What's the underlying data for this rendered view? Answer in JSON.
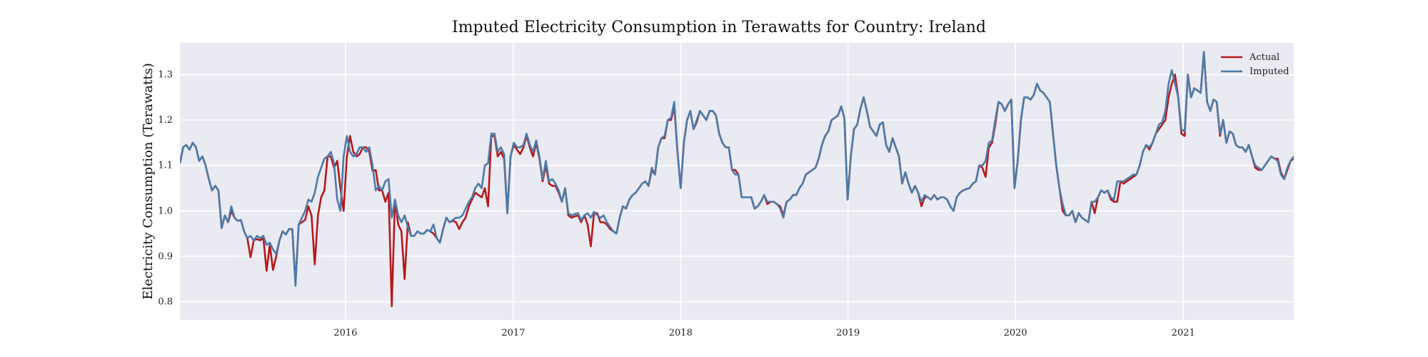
{
  "chart_data": {
    "type": "line",
    "title": "Imputed Electricity Consumption in Terawatts for Country: Ireland",
    "xlabel": "",
    "ylabel": "Electricity Consumption (Terawatts)",
    "xlim": [
      "2015-01-05",
      "2021-08-30"
    ],
    "ylim": [
      0.76,
      1.37
    ],
    "x_ticks": [
      {
        "date": "2016-01-01",
        "label": "2016"
      },
      {
        "date": "2017-01-01",
        "label": "2017"
      },
      {
        "date": "2018-01-01",
        "label": "2018"
      },
      {
        "date": "2019-01-01",
        "label": "2019"
      },
      {
        "date": "2020-01-01",
        "label": "2020"
      },
      {
        "date": "2021-01-01",
        "label": "2021"
      }
    ],
    "y_ticks": [
      0.8,
      0.9,
      1.0,
      1.1,
      1.2,
      1.3
    ],
    "grid": true,
    "legend_position": "top-right",
    "x": [
      "2015-01-05",
      "2015-01-12",
      "2015-01-19",
      "2015-01-26",
      "2015-02-02",
      "2015-02-09",
      "2015-02-16",
      "2015-02-23",
      "2015-03-02",
      "2015-03-09",
      "2015-03-16",
      "2015-03-23",
      "2015-03-30",
      "2015-04-06",
      "2015-04-13",
      "2015-04-20",
      "2015-04-27",
      "2015-05-04",
      "2015-05-11",
      "2015-05-18",
      "2015-05-25",
      "2015-06-01",
      "2015-06-08",
      "2015-06-15",
      "2015-06-22",
      "2015-06-29",
      "2015-07-06",
      "2015-07-13",
      "2015-07-20",
      "2015-07-27",
      "2015-08-03",
      "2015-08-10",
      "2015-08-17",
      "2015-08-24",
      "2015-08-31",
      "2015-09-07",
      "2015-09-14",
      "2015-09-21",
      "2015-09-28",
      "2015-10-05",
      "2015-10-12",
      "2015-10-19",
      "2015-10-26",
      "2015-11-02",
      "2015-11-09",
      "2015-11-16",
      "2015-11-23",
      "2015-11-30",
      "2015-12-07",
      "2015-12-14",
      "2015-12-21",
      "2015-12-28",
      "2016-01-04",
      "2016-01-11",
      "2016-01-18",
      "2016-01-25",
      "2016-02-01",
      "2016-02-08",
      "2016-02-15",
      "2016-02-22",
      "2016-02-29",
      "2016-03-07",
      "2016-03-14",
      "2016-03-21",
      "2016-03-28",
      "2016-04-04",
      "2016-04-11",
      "2016-04-18",
      "2016-04-25",
      "2016-05-02",
      "2016-05-09",
      "2016-05-16",
      "2016-05-23",
      "2016-05-30",
      "2016-06-06",
      "2016-06-13",
      "2016-06-20",
      "2016-06-27",
      "2016-07-04",
      "2016-07-11",
      "2016-07-18",
      "2016-07-25",
      "2016-08-01",
      "2016-08-08",
      "2016-08-15",
      "2016-08-22",
      "2016-08-29",
      "2016-09-05",
      "2016-09-12",
      "2016-09-19",
      "2016-09-26",
      "2016-10-03",
      "2016-10-10",
      "2016-10-17",
      "2016-10-24",
      "2016-10-31",
      "2016-11-07",
      "2016-11-14",
      "2016-11-21",
      "2016-11-28",
      "2016-12-05",
      "2016-12-12",
      "2016-12-19",
      "2016-12-26",
      "2017-01-02",
      "2017-01-09",
      "2017-01-16",
      "2017-01-23",
      "2017-01-30",
      "2017-02-06",
      "2017-02-13",
      "2017-02-20",
      "2017-02-27",
      "2017-03-06",
      "2017-03-13",
      "2017-03-20",
      "2017-03-27",
      "2017-04-03",
      "2017-04-10",
      "2017-04-17",
      "2017-04-24",
      "2017-05-01",
      "2017-05-08",
      "2017-05-15",
      "2017-05-22",
      "2017-05-29",
      "2017-06-05",
      "2017-06-12",
      "2017-06-19",
      "2017-06-26",
      "2017-07-03",
      "2017-07-10",
      "2017-07-17",
      "2017-07-24",
      "2017-07-31",
      "2017-08-07",
      "2017-08-14",
      "2017-08-21",
      "2017-08-28",
      "2017-09-04",
      "2017-09-11",
      "2017-09-18",
      "2017-09-25",
      "2017-10-02",
      "2017-10-09",
      "2017-10-16",
      "2017-10-23",
      "2017-10-30",
      "2017-11-06",
      "2017-11-13",
      "2017-11-20",
      "2017-11-27",
      "2017-12-04",
      "2017-12-11",
      "2017-12-18",
      "2017-12-25",
      "2018-01-01",
      "2018-01-08",
      "2018-01-15",
      "2018-01-22",
      "2018-01-29",
      "2018-02-05",
      "2018-02-12",
      "2018-02-19",
      "2018-02-26",
      "2018-03-05",
      "2018-03-12",
      "2018-03-19",
      "2018-03-26",
      "2018-04-02",
      "2018-04-09",
      "2018-04-16",
      "2018-04-23",
      "2018-04-30",
      "2018-05-07",
      "2018-05-14",
      "2018-05-21",
      "2018-05-28",
      "2018-06-04",
      "2018-06-11",
      "2018-06-18",
      "2018-06-25",
      "2018-07-02",
      "2018-07-09",
      "2018-07-16",
      "2018-07-23",
      "2018-07-30",
      "2018-08-06",
      "2018-08-13",
      "2018-08-20",
      "2018-08-27",
      "2018-09-03",
      "2018-09-10",
      "2018-09-17",
      "2018-09-24",
      "2018-10-01",
      "2018-10-08",
      "2018-10-15",
      "2018-10-22",
      "2018-10-29",
      "2018-11-05",
      "2018-11-12",
      "2018-11-19",
      "2018-11-26",
      "2018-12-03",
      "2018-12-10",
      "2018-12-17",
      "2018-12-24",
      "2018-12-31",
      "2019-01-07",
      "2019-01-14",
      "2019-01-21",
      "2019-01-28",
      "2019-02-04",
      "2019-02-11",
      "2019-02-18",
      "2019-02-25",
      "2019-03-04",
      "2019-03-11",
      "2019-03-18",
      "2019-03-25",
      "2019-04-01",
      "2019-04-08",
      "2019-04-15",
      "2019-04-22",
      "2019-04-29",
      "2019-05-06",
      "2019-05-13",
      "2019-05-20",
      "2019-05-27",
      "2019-06-03",
      "2019-06-10",
      "2019-06-17",
      "2019-06-24",
      "2019-07-01",
      "2019-07-08",
      "2019-07-15",
      "2019-07-22",
      "2019-07-29",
      "2019-08-05",
      "2019-08-12",
      "2019-08-19",
      "2019-08-26",
      "2019-09-02",
      "2019-09-09",
      "2019-09-16",
      "2019-09-23",
      "2019-09-30",
      "2019-10-07",
      "2019-10-14",
      "2019-10-21",
      "2019-10-28",
      "2019-11-04",
      "2019-11-11",
      "2019-11-18",
      "2019-11-25",
      "2019-12-02",
      "2019-12-09",
      "2019-12-16",
      "2019-12-23",
      "2019-12-30",
      "2020-01-06",
      "2020-01-13",
      "2020-01-20",
      "2020-01-27",
      "2020-02-03",
      "2020-02-10",
      "2020-02-17",
      "2020-02-24",
      "2020-03-02",
      "2020-03-09",
      "2020-03-16",
      "2020-03-23",
      "2020-03-30",
      "2020-04-06",
      "2020-04-13",
      "2020-04-20",
      "2020-04-27",
      "2020-05-04",
      "2020-05-11",
      "2020-05-18",
      "2020-05-25",
      "2020-06-01",
      "2020-06-08",
      "2020-06-15",
      "2020-06-22",
      "2020-06-29",
      "2020-07-06",
      "2020-07-13",
      "2020-07-20",
      "2020-07-27",
      "2020-08-03",
      "2020-08-10",
      "2020-08-17",
      "2020-08-24",
      "2020-08-31",
      "2020-09-07",
      "2020-09-14",
      "2020-09-21",
      "2020-09-28",
      "2020-10-05",
      "2020-10-12",
      "2020-10-19",
      "2020-10-26",
      "2020-11-02",
      "2020-11-09",
      "2020-11-16",
      "2020-11-23",
      "2020-11-30",
      "2020-12-07",
      "2020-12-14",
      "2020-12-21",
      "2020-12-28",
      "2021-01-04",
      "2021-01-11",
      "2021-01-18",
      "2021-01-25",
      "2021-02-01",
      "2021-02-08",
      "2021-02-15",
      "2021-02-22",
      "2021-03-01",
      "2021-03-08",
      "2021-03-15",
      "2021-03-22",
      "2021-03-29",
      "2021-04-05",
      "2021-04-12",
      "2021-04-19",
      "2021-04-26",
      "2021-05-03",
      "2021-05-10",
      "2021-05-17",
      "2021-05-24",
      "2021-05-31",
      "2021-06-07",
      "2021-06-14",
      "2021-06-21",
      "2021-06-28",
      "2021-07-05",
      "2021-07-12",
      "2021-07-19",
      "2021-07-26",
      "2021-08-02",
      "2021-08-09",
      "2021-08-16",
      "2021-08-23",
      "2021-08-30"
    ],
    "series": [
      {
        "name": "Actual",
        "color": "#b5191c",
        "values": [
          1.105,
          1.14,
          1.145,
          1.135,
          1.15,
          1.14,
          1.11,
          1.12,
          1.1,
          1.07,
          1.045,
          1.055,
          1.045,
          0.962,
          0.99,
          0.975,
          1.0,
          0.985,
          0.978,
          0.98,
          0.955,
          0.94,
          0.898,
          0.935,
          0.938,
          0.935,
          0.94,
          0.868,
          0.925,
          0.87,
          0.9,
          0.935,
          0.955,
          0.948,
          0.96,
          0.96,
          0.84,
          0.97,
          0.975,
          0.98,
          1.01,
          0.99,
          0.882,
          0.99,
          1.03,
          1.045,
          1.12,
          1.12,
          1.095,
          1.11,
          1.05,
          1.0,
          1.12,
          1.165,
          1.13,
          1.12,
          1.125,
          1.14,
          1.14,
          1.13,
          1.088,
          1.09,
          1.045,
          1.045,
          1.02,
          1.04,
          0.79,
          1.025,
          0.97,
          0.955,
          0.85,
          0.975,
          0.945,
          0.945,
          0.955,
          0.95,
          0.95,
          0.958,
          0.955,
          0.95,
          0.94,
          0.93,
          0.96,
          0.985,
          0.975,
          0.978,
          0.975,
          0.96,
          0.975,
          0.985,
          1.01,
          1.025,
          1.04,
          1.035,
          1.03,
          1.05,
          1.01,
          1.165,
          1.165,
          1.12,
          1.13,
          1.115,
          0.995,
          1.12,
          1.145,
          1.135,
          1.125,
          1.14,
          1.165,
          1.14,
          1.12,
          1.15,
          1.115,
          1.065,
          1.1,
          1.06,
          1.055,
          1.055,
          1.04,
          1.02,
          1.05,
          0.99,
          0.985,
          0.988,
          0.99,
          0.975,
          0.99,
          0.97,
          0.922,
          0.995,
          0.995,
          0.975,
          0.975,
          0.97,
          0.96,
          0.955,
          0.95,
          0.985,
          1.01,
          1.005,
          1.025,
          1.035,
          1.04,
          1.05,
          1.06,
          1.065,
          1.055,
          1.09,
          1.08,
          1.14,
          1.16,
          1.16,
          1.2,
          1.2,
          1.23,
          1.13,
          1.05,
          1.15,
          1.2,
          1.22,
          1.18,
          1.195,
          1.22,
          1.21,
          1.2,
          1.22,
          1.22,
          1.21,
          1.17,
          1.15,
          1.14,
          1.14,
          1.09,
          1.09,
          1.08,
          1.03,
          1.03,
          1.03,
          1.03,
          1.005,
          1.01,
          1.02,
          1.035,
          1.015,
          1.02,
          1.02,
          1.015,
          1.01,
          0.99,
          1.02,
          1.025,
          1.035,
          1.035,
          1.05,
          1.06,
          1.08,
          1.085,
          1.09,
          1.095,
          1.115,
          1.145,
          1.165,
          1.175,
          1.2,
          1.205,
          1.21,
          1.23,
          1.205,
          1.025,
          1.12,
          1.18,
          1.19,
          1.225,
          1.25,
          1.22,
          1.185,
          1.175,
          1.165,
          1.19,
          1.195,
          1.145,
          1.13,
          1.16,
          1.14,
          1.12,
          1.06,
          1.085,
          1.06,
          1.04,
          1.055,
          1.04,
          1.01,
          1.03,
          1.03,
          1.025,
          1.035,
          1.025,
          1.03,
          1.03,
          1.025,
          1.01,
          1.0,
          1.03,
          1.04,
          1.045,
          1.048,
          1.05,
          1.06,
          1.065,
          1.1,
          1.095,
          1.075,
          1.14,
          1.15,
          1.19,
          1.24,
          1.235,
          1.22,
          1.235,
          1.245,
          1.05,
          1.11,
          1.2,
          1.25,
          1.25,
          1.245,
          1.255,
          1.28,
          1.265,
          1.26,
          1.25,
          1.24,
          1.17,
          1.1,
          1.05,
          1.0,
          0.99,
          0.99,
          1.0,
          0.975,
          0.995,
          0.985,
          0.98,
          0.975,
          1.02,
          0.995,
          1.03,
          1.045,
          1.04,
          1.045,
          1.025,
          1.02,
          1.02,
          1.065,
          1.06,
          1.065,
          1.07,
          1.075,
          1.08,
          1.1,
          1.13,
          1.145,
          1.135,
          1.15,
          1.17,
          1.18,
          1.19,
          1.2,
          1.25,
          1.28,
          1.3,
          1.25,
          1.17,
          1.165,
          1.3,
          1.25,
          1.27,
          1.265,
          1.26,
          1.35,
          1.24,
          1.22,
          1.245,
          1.24,
          1.165,
          1.2,
          1.15,
          1.175,
          1.17,
          1.145,
          1.14,
          1.14,
          1.13,
          1.145,
          1.12,
          1.095,
          1.09,
          1.09,
          1.1,
          1.11,
          1.12,
          1.115,
          1.115,
          1.085,
          1.07,
          1.09,
          1.11,
          1.115
        ]
      },
      {
        "name": "Imputed",
        "color": "#4c7ba8",
        "values": [
          1.105,
          1.14,
          1.145,
          1.135,
          1.15,
          1.14,
          1.11,
          1.12,
          1.1,
          1.07,
          1.045,
          1.055,
          1.045,
          0.962,
          0.99,
          0.975,
          1.01,
          0.985,
          0.978,
          0.98,
          0.955,
          0.94,
          0.945,
          0.935,
          0.945,
          0.94,
          0.945,
          0.925,
          0.93,
          0.915,
          0.905,
          0.935,
          0.955,
          0.948,
          0.96,
          0.96,
          0.835,
          0.97,
          0.985,
          1.0,
          1.025,
          1.02,
          1.04,
          1.075,
          1.095,
          1.115,
          1.12,
          1.13,
          1.105,
          1.025,
          1.0,
          1.12,
          1.165,
          1.13,
          1.12,
          1.125,
          1.14,
          1.14,
          1.13,
          1.14,
          1.1,
          1.045,
          1.055,
          1.045,
          1.065,
          1.07,
          0.985,
          1.025,
          0.99,
          0.975,
          0.99,
          0.965,
          0.945,
          0.945,
          0.955,
          0.95,
          0.95,
          0.958,
          0.955,
          0.97,
          0.94,
          0.93,
          0.96,
          0.985,
          0.975,
          0.98,
          0.985,
          0.985,
          0.99,
          1.005,
          1.02,
          1.03,
          1.05,
          1.06,
          1.05,
          1.1,
          1.105,
          1.17,
          1.17,
          1.13,
          1.14,
          1.125,
          0.995,
          1.12,
          1.15,
          1.14,
          1.14,
          1.145,
          1.17,
          1.145,
          1.13,
          1.155,
          1.12,
          1.07,
          1.11,
          1.065,
          1.07,
          1.06,
          1.045,
          1.02,
          1.05,
          0.995,
          0.99,
          0.993,
          0.995,
          0.98,
          0.99,
          0.995,
          0.985,
          0.998,
          0.99,
          0.985,
          0.99,
          0.975,
          0.965,
          0.955,
          0.95,
          0.985,
          1.01,
          1.005,
          1.025,
          1.035,
          1.04,
          1.05,
          1.06,
          1.065,
          1.055,
          1.095,
          1.08,
          1.14,
          1.16,
          1.165,
          1.2,
          1.205,
          1.24,
          1.13,
          1.05,
          1.15,
          1.2,
          1.22,
          1.18,
          1.2,
          1.22,
          1.21,
          1.2,
          1.22,
          1.22,
          1.21,
          1.17,
          1.15,
          1.14,
          1.14,
          1.09,
          1.08,
          1.08,
          1.03,
          1.03,
          1.03,
          1.03,
          1.005,
          1.01,
          1.02,
          1.035,
          1.02,
          1.02,
          1.02,
          1.015,
          1.005,
          0.985,
          1.02,
          1.025,
          1.035,
          1.035,
          1.05,
          1.06,
          1.08,
          1.085,
          1.09,
          1.095,
          1.115,
          1.145,
          1.165,
          1.175,
          1.2,
          1.205,
          1.21,
          1.23,
          1.205,
          1.025,
          1.12,
          1.18,
          1.19,
          1.225,
          1.25,
          1.22,
          1.185,
          1.175,
          1.165,
          1.19,
          1.195,
          1.145,
          1.13,
          1.16,
          1.14,
          1.12,
          1.06,
          1.085,
          1.06,
          1.04,
          1.055,
          1.04,
          1.02,
          1.035,
          1.03,
          1.025,
          1.035,
          1.025,
          1.03,
          1.03,
          1.025,
          1.01,
          1.0,
          1.03,
          1.04,
          1.045,
          1.048,
          1.05,
          1.06,
          1.065,
          1.1,
          1.1,
          1.11,
          1.15,
          1.155,
          1.2,
          1.24,
          1.235,
          1.22,
          1.235,
          1.245,
          1.05,
          1.11,
          1.2,
          1.25,
          1.25,
          1.245,
          1.255,
          1.28,
          1.265,
          1.26,
          1.25,
          1.24,
          1.17,
          1.1,
          1.05,
          1.015,
          0.99,
          0.99,
          1.0,
          0.975,
          0.995,
          0.985,
          0.98,
          0.975,
          1.02,
          1.02,
          1.03,
          1.045,
          1.04,
          1.045,
          1.03,
          1.025,
          1.065,
          1.065,
          1.065,
          1.07,
          1.075,
          1.08,
          1.08,
          1.1,
          1.13,
          1.145,
          1.14,
          1.15,
          1.17,
          1.19,
          1.195,
          1.22,
          1.28,
          1.31,
          1.28,
          1.25,
          1.18,
          1.175,
          1.3,
          1.25,
          1.27,
          1.265,
          1.26,
          1.35,
          1.24,
          1.22,
          1.245,
          1.24,
          1.17,
          1.2,
          1.15,
          1.175,
          1.17,
          1.145,
          1.14,
          1.14,
          1.13,
          1.145,
          1.12,
          1.1,
          1.095,
          1.09,
          1.1,
          1.11,
          1.12,
          1.115,
          1.11,
          1.08,
          1.07,
          1.095,
          1.11,
          1.12
        ]
      }
    ]
  }
}
